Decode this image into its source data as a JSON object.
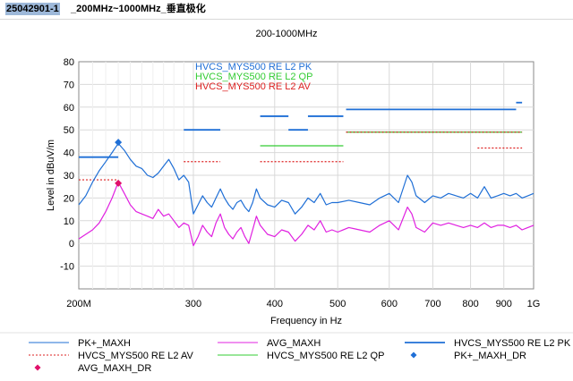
{
  "header": {
    "title_prefix": "25042901-1",
    "title_rest": "_200MHz~1000MHz_垂直极化"
  },
  "chart_data": {
    "type": "line",
    "title": "200-1000MHz",
    "xlabel": "Frequency in Hz",
    "ylabel": "Level in dBuV/m",
    "x_scale": "log",
    "xlim": [
      200,
      1000
    ],
    "ylim": [
      -20,
      80
    ],
    "y_ticks": [
      -10,
      0,
      10,
      20,
      30,
      40,
      50,
      60,
      70,
      80
    ],
    "x_ticks": [
      {
        "value": 200,
        "label": "200M"
      },
      {
        "value": 300,
        "label": "300"
      },
      {
        "value": 400,
        "label": "400"
      },
      {
        "value": 500,
        "label": "500"
      },
      {
        "value": 600,
        "label": "600"
      },
      {
        "value": 700,
        "label": "700"
      },
      {
        "value": 800,
        "label": "800"
      },
      {
        "value": 900,
        "label": "900"
      },
      {
        "value": 1000,
        "label": "1G"
      }
    ],
    "grid": true,
    "inline_legend": [
      {
        "label": "HVCS_MYS500 RE L2 PK",
        "color": "#1f6fd6"
      },
      {
        "label": "HVCS_MYS500 RE L2 QP",
        "color": "#33cc33"
      },
      {
        "label": "HVCS_MYS500 RE L2 AV",
        "color": "#dd2222"
      }
    ],
    "limit_lines": {
      "pk": {
        "color": "#1f6fd6",
        "segments": [
          [
            200,
            230,
            38
          ],
          [
            290,
            330,
            50
          ],
          [
            380,
            420,
            56
          ],
          [
            420,
            450,
            50
          ],
          [
            450,
            510,
            56
          ],
          [
            515,
            940,
            59
          ],
          [
            940,
            960,
            62
          ]
        ]
      },
      "qp": {
        "color": "#33cc33",
        "segments": [
          [
            380,
            510,
            43
          ],
          [
            515,
            960,
            49
          ]
        ]
      },
      "av": {
        "color": "#dd2222",
        "segments": [
          [
            200,
            230,
            28
          ],
          [
            290,
            330,
            36
          ],
          [
            380,
            510,
            36
          ],
          [
            515,
            960,
            49
          ],
          [
            820,
            960,
            42
          ]
        ]
      }
    },
    "series": [
      {
        "name": "PK+_MAXH",
        "color": "#1f6fd6",
        "x": [
          200,
          205,
          210,
          215,
          220,
          225,
          230,
          235,
          240,
          245,
          250,
          255,
          260,
          265,
          270,
          275,
          280,
          285,
          290,
          295,
          300,
          305,
          310,
          315,
          320,
          325,
          330,
          335,
          340,
          345,
          350,
          355,
          360,
          365,
          370,
          375,
          380,
          390,
          400,
          410,
          420,
          430,
          440,
          450,
          460,
          470,
          480,
          490,
          500,
          520,
          540,
          560,
          580,
          600,
          620,
          640,
          650,
          660,
          680,
          700,
          720,
          740,
          760,
          780,
          800,
          820,
          840,
          860,
          880,
          900,
          920,
          940,
          960,
          980,
          1000
        ],
        "y": [
          17,
          21,
          27,
          32,
          36,
          40,
          44,
          41,
          37,
          34,
          33,
          30,
          29,
          31,
          34,
          37,
          33,
          28,
          30,
          27,
          13,
          17,
          21,
          18,
          16,
          20,
          24,
          20,
          17,
          15,
          18,
          19,
          16,
          14,
          18,
          24,
          20,
          17,
          16,
          19,
          18,
          13,
          16,
          20,
          18,
          22,
          17,
          18,
          18,
          19,
          18,
          17,
          20,
          22,
          18,
          30,
          27,
          21,
          18,
          21,
          20,
          22,
          21,
          20,
          22,
          20,
          25,
          20,
          21,
          22,
          21,
          22,
          20,
          21,
          22
        ]
      },
      {
        "name": "AVG_MAXH",
        "color": "#e020e0",
        "x": [
          200,
          205,
          210,
          215,
          220,
          225,
          230,
          235,
          240,
          245,
          250,
          255,
          260,
          265,
          270,
          275,
          280,
          285,
          290,
          295,
          300,
          305,
          310,
          315,
          320,
          325,
          330,
          335,
          340,
          345,
          350,
          355,
          360,
          365,
          370,
          375,
          380,
          390,
          400,
          410,
          420,
          430,
          440,
          450,
          460,
          470,
          480,
          490,
          500,
          520,
          540,
          560,
          580,
          600,
          620,
          640,
          650,
          660,
          680,
          700,
          720,
          740,
          760,
          780,
          800,
          820,
          840,
          860,
          880,
          900,
          920,
          940,
          960,
          980,
          1000
        ],
        "y": [
          2,
          4,
          6,
          9,
          14,
          20,
          27,
          22,
          17,
          14,
          13,
          12,
          11,
          15,
          12,
          13,
          10,
          7,
          9,
          8,
          -1,
          3,
          8,
          5,
          3,
          9,
          13,
          7,
          4,
          2,
          5,
          7,
          3,
          0,
          6,
          12,
          8,
          4,
          3,
          6,
          5,
          1,
          4,
          8,
          6,
          10,
          5,
          6,
          5,
          7,
          6,
          5,
          8,
          10,
          6,
          16,
          13,
          7,
          5,
          9,
          8,
          9,
          8,
          7,
          8,
          7,
          9,
          7,
          8,
          8,
          7,
          8,
          6,
          7,
          8
        ]
      }
    ],
    "markers": [
      {
        "name": "PK+_MAXH_DR",
        "x": 230,
        "y": 44.5,
        "color": "#1f6fd6"
      },
      {
        "name": "AVG_MAXH_DR",
        "x": 230,
        "y": 26.5,
        "color": "#e0106a"
      }
    ],
    "legend": [
      {
        "label": "PK+_MAXH",
        "color": "#1f6fd6",
        "style": "line"
      },
      {
        "label": "AVG_MAXH",
        "color": "#e020e0",
        "style": "line"
      },
      {
        "label": "HVCS_MYS500 RE L2 PK",
        "color": "#1f6fd6",
        "style": "thickline"
      },
      {
        "label": "HVCS_MYS500 RE L2 AV",
        "color": "#dd2222",
        "style": "dotted"
      },
      {
        "label": "HVCS_MYS500 RE L2 QP",
        "color": "#33cc33",
        "style": "line"
      },
      {
        "label": "PK+_MAXH_DR",
        "color": "#1f6fd6",
        "style": "diamond"
      },
      {
        "label": "AVG_MAXH_DR",
        "color": "#e0106a",
        "style": "diamond"
      }
    ]
  }
}
